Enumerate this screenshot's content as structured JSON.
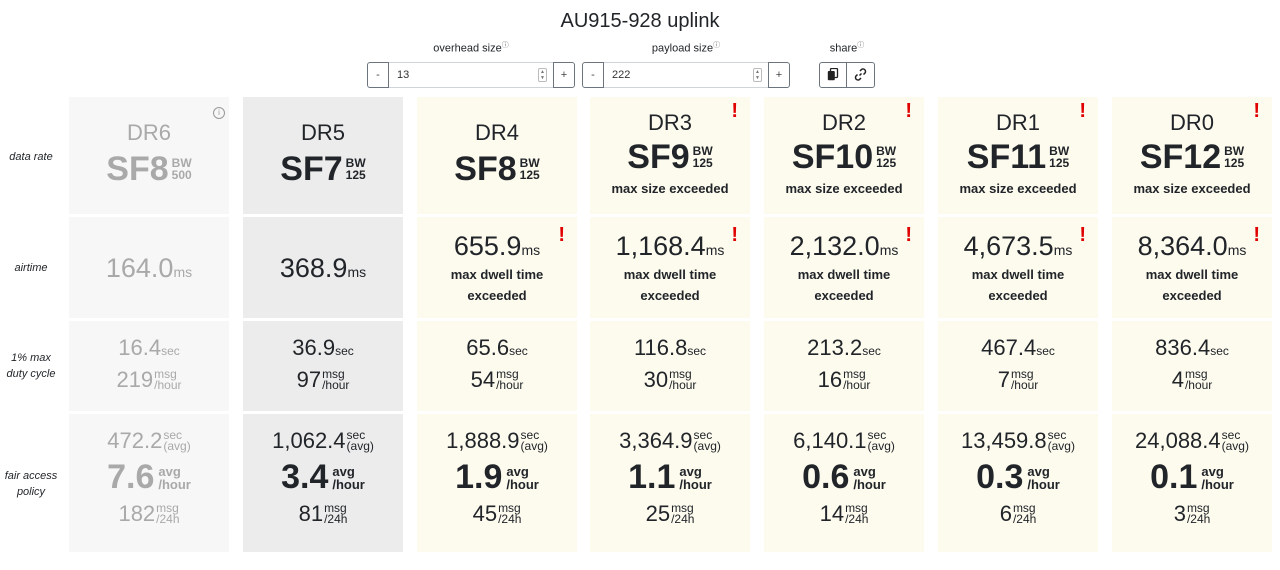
{
  "title": "AU915-928 uplink",
  "controls": {
    "overhead_label": "overhead size",
    "payload_label": "payload size",
    "share_label": "share",
    "overhead_value": "13",
    "payload_value": "222",
    "minus": "-",
    "plus": "+"
  },
  "row_labels": {
    "data_rate": "data rate",
    "airtime": "airtime",
    "duty_1": "1% max",
    "duty_2": "duty cycle",
    "fap_1": "fair access",
    "fap_2": "policy"
  },
  "units": {
    "ms": "ms",
    "sec": "sec",
    "msg": "msg",
    "per_hour": "/hour",
    "avg_paren": "(avg)",
    "avg": "avg",
    "per_24h": "/24h",
    "bw": "BW"
  },
  "warnings": {
    "size": "max size exceeded",
    "dwell_1": "max dwell time",
    "dwell_2": "exceeded"
  },
  "columns": [
    {
      "dr": "DR6",
      "sf": "SF8",
      "bw": "500",
      "airtime": "164.0",
      "duty_sec": "16.4",
      "duty_msg": "219",
      "fap_sec": "472.2",
      "fap_avg": "7.6",
      "fap_msg": "182",
      "state": "fade"
    },
    {
      "dr": "DR5",
      "sf": "SF7",
      "bw": "125",
      "airtime": "368.9",
      "duty_sec": "36.9",
      "duty_msg": "97",
      "fap_sec": "1,062.4",
      "fap_avg": "3.4",
      "fap_msg": "81",
      "state": "selected"
    },
    {
      "dr": "DR4",
      "sf": "SF8",
      "bw": "125",
      "airtime": "655.9",
      "duty_sec": "65.6",
      "duty_msg": "54",
      "fap_sec": "1,888.9",
      "fap_avg": "1.9",
      "fap_msg": "45",
      "state": "warn"
    },
    {
      "dr": "DR3",
      "sf": "SF9",
      "bw": "125",
      "airtime": "1,168.4",
      "duty_sec": "116.8",
      "duty_msg": "30",
      "fap_sec": "3,364.9",
      "fap_avg": "1.1",
      "fap_msg": "25",
      "state": "warn"
    },
    {
      "dr": "DR2",
      "sf": "SF10",
      "bw": "125",
      "airtime": "2,132.0",
      "duty_sec": "213.2",
      "duty_msg": "16",
      "fap_sec": "6,140.1",
      "fap_avg": "0.6",
      "fap_msg": "14",
      "state": "warn"
    },
    {
      "dr": "DR1",
      "sf": "SF11",
      "bw": "125",
      "airtime": "4,673.5",
      "duty_sec": "467.4",
      "duty_msg": "7",
      "fap_sec": "13,459.8",
      "fap_avg": "0.3",
      "fap_msg": "6",
      "state": "warn"
    },
    {
      "dr": "DR0",
      "sf": "SF12",
      "bw": "125",
      "airtime": "8,364.0",
      "duty_sec": "836.4",
      "duty_msg": "4",
      "fap_sec": "24,088.4",
      "fap_avg": "0.1",
      "fap_msg": "3",
      "state": "warn"
    }
  ]
}
